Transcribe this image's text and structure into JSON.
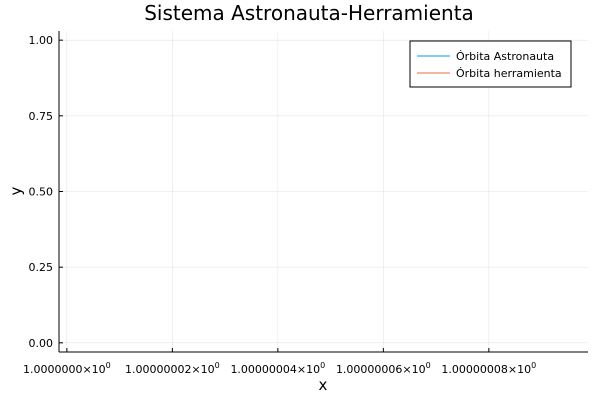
{
  "chart_data": {
    "type": "line",
    "title": "Sistema Astronauta-Herramienta",
    "xlabel": "x",
    "ylabel": "y",
    "x_ticks": [
      {
        "value": 1.0,
        "mantissa": "1.0000000",
        "exponent": "0"
      },
      {
        "value": 1.00000002,
        "mantissa": "1.00000002",
        "exponent": "0"
      },
      {
        "value": 1.00000004,
        "mantissa": "1.00000004",
        "exponent": "0"
      },
      {
        "value": 1.00000006,
        "mantissa": "1.00000006",
        "exponent": "0"
      },
      {
        "value": 1.00000008,
        "mantissa": "1.00000008",
        "exponent": "0"
      }
    ],
    "y_ticks": [
      {
        "value": 0.0,
        "label": "0.00"
      },
      {
        "value": 0.25,
        "label": "0.25"
      },
      {
        "value": 0.5,
        "label": "0.50"
      },
      {
        "value": 0.75,
        "label": "0.75"
      },
      {
        "value": 1.0,
        "label": "1.00"
      }
    ],
    "xlim": [
      0.99999999851,
      1.0000000988
    ],
    "ylim": [
      -0.0303,
      1.0303
    ],
    "grid": true,
    "legend_position": "top-right",
    "series": [
      {
        "name": "Órbita Astronauta",
        "color": "#009AFA",
        "x": [],
        "y": []
      },
      {
        "name": "Órbita herramienta",
        "color": "#E36F47",
        "x": [],
        "y": []
      }
    ]
  }
}
